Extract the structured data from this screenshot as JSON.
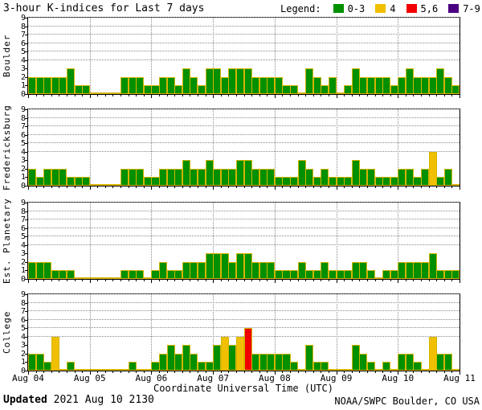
{
  "header": {
    "title": "3-hour K-indices for Last 7 days",
    "legend_label": "Legend:",
    "legend": [
      {
        "label": "0-3",
        "color": "#009000"
      },
      {
        "label": "4",
        "color": "#f0c000"
      },
      {
        "label": "5,6",
        "color": "#f00000"
      },
      {
        "label": "7-9",
        "color": "#4b0082"
      }
    ]
  },
  "chart_data": {
    "type": "bar",
    "title": "3-hour K-indices for Last 7 days",
    "interval_hours": 3,
    "xlabel": "Coordinate Universal Time (UTC)",
    "ylim": [
      0,
      9
    ],
    "y_ticks": [
      0,
      1,
      2,
      3,
      4,
      5,
      6,
      7,
      8,
      9
    ],
    "grid_y_values": [
      4,
      5,
      6,
      7,
      8,
      9
    ],
    "grid": "dotted",
    "bars_per_day": 8,
    "days": 7,
    "x_tick_labels": [
      "Aug 04",
      "Aug 05",
      "Aug 06",
      "Aug 07",
      "Aug 08",
      "Aug 09",
      "Aug 10",
      "Aug 11"
    ],
    "bar_outline_color": "#d6b400",
    "k_colors": [
      {
        "max": 3,
        "color": "#009000"
      },
      {
        "max": 4,
        "color": "#f0c000"
      },
      {
        "max": 6,
        "color": "#f00000"
      },
      {
        "max": 9,
        "color": "#4b0082"
      }
    ],
    "panels": [
      {
        "station": "Boulder",
        "values": [
          2,
          2,
          2,
          2,
          2,
          3,
          1,
          1,
          0,
          0,
          0,
          0,
          2,
          2,
          2,
          1,
          1,
          2,
          2,
          1,
          3,
          2,
          1,
          3,
          3,
          2,
          3,
          3,
          3,
          2,
          2,
          2,
          2,
          1,
          1,
          0,
          3,
          2,
          1,
          2,
          0,
          1,
          3,
          2,
          2,
          2,
          2,
          1,
          2,
          3,
          2,
          2,
          2,
          3,
          2,
          1
        ]
      },
      {
        "station": "Fredericksburg",
        "values": [
          2,
          1,
          2,
          2,
          2,
          1,
          1,
          1,
          0,
          0,
          0,
          0,
          2,
          2,
          2,
          1,
          1,
          2,
          2,
          2,
          3,
          2,
          2,
          3,
          2,
          2,
          2,
          3,
          3,
          2,
          2,
          2,
          1,
          1,
          1,
          3,
          2,
          1,
          2,
          1,
          1,
          1,
          3,
          2,
          2,
          1,
          1,
          1,
          2,
          2,
          1,
          2,
          4,
          1,
          2,
          0
        ]
      },
      {
        "station": "Est. Planetary",
        "values": [
          2,
          2,
          2,
          1,
          1,
          1,
          0,
          0,
          0,
          0,
          0,
          0,
          1,
          1,
          1,
          0,
          1,
          2,
          1,
          1,
          2,
          2,
          2,
          3,
          3,
          3,
          2,
          3,
          3,
          2,
          2,
          2,
          1,
          1,
          1,
          2,
          1,
          1,
          2,
          1,
          1,
          1,
          2,
          2,
          1,
          0,
          1,
          1,
          2,
          2,
          2,
          2,
          3,
          1,
          1,
          1
        ]
      },
      {
        "station": "College",
        "values": [
          2,
          2,
          1,
          4,
          0,
          1,
          0,
          0,
          0,
          0,
          0,
          0,
          0,
          1,
          0,
          0,
          1,
          2,
          3,
          2,
          3,
          2,
          1,
          1,
          3,
          4,
          3,
          4,
          5,
          2,
          2,
          2,
          2,
          2,
          1,
          0,
          3,
          1,
          1,
          0,
          0,
          0,
          3,
          2,
          1,
          0,
          1,
          0,
          2,
          2,
          1,
          0,
          4,
          2,
          2,
          0
        ]
      }
    ]
  },
  "footer": {
    "updated_label": "Updated",
    "updated_value": "2021 Aug 10 2130",
    "credit": "NOAA/SWPC Boulder, CO USA"
  }
}
